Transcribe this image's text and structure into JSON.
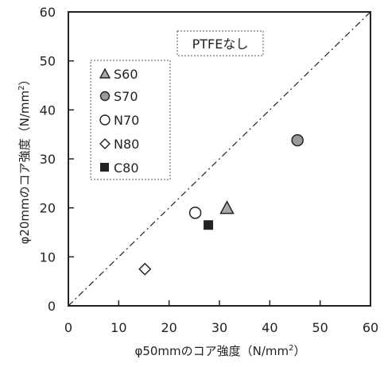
{
  "chart_data": {
    "type": "scatter",
    "title": "",
    "xlabel": {
      "prefix": "φ50mmのコア強度（N/mm",
      "sup": "2",
      "suffix": "）"
    },
    "ylabel": {
      "prefix": "φ20mmのコア強度（N/mm",
      "sup": "2",
      "suffix": "）"
    },
    "xlim": [
      0,
      60
    ],
    "ylim": [
      0,
      60
    ],
    "xticks": [
      0,
      10,
      20,
      30,
      40,
      50,
      60
    ],
    "yticks": [
      0,
      10,
      20,
      30,
      40,
      50,
      60
    ],
    "grid": false,
    "annotation": "PTFEなし",
    "reference_line": {
      "style": "dash-dot",
      "from": [
        0,
        0
      ],
      "to": [
        60,
        60
      ]
    },
    "legend": {
      "placement": "upper-left",
      "entries": [
        {
          "label": "S60",
          "marker": "triangle"
        },
        {
          "label": "S70",
          "marker": "circle-gray"
        },
        {
          "label": "N70",
          "marker": "circle-open"
        },
        {
          "label": "N80",
          "marker": "diamond-open"
        },
        {
          "label": "C80",
          "marker": "square-filled"
        }
      ]
    },
    "series": [
      {
        "name": "S60",
        "marker": "triangle",
        "points": [
          [
            31.5,
            20
          ]
        ]
      },
      {
        "name": "S70",
        "marker": "circle-gray",
        "points": [
          [
            45.5,
            33.8
          ]
        ]
      },
      {
        "name": "N70",
        "marker": "circle-open",
        "points": [
          [
            25.2,
            19
          ]
        ]
      },
      {
        "name": "N80",
        "marker": "diamond-open",
        "points": [
          [
            15.2,
            7.5
          ]
        ]
      },
      {
        "name": "C80",
        "marker": "square-filled",
        "points": [
          [
            27.8,
            16.5
          ]
        ]
      }
    ]
  }
}
